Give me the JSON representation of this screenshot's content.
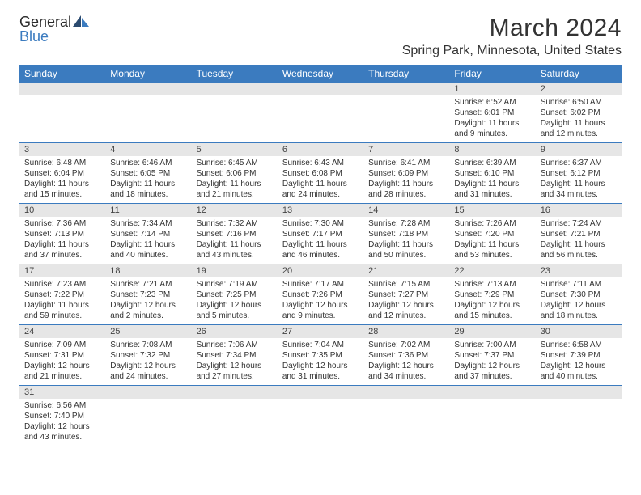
{
  "logo": {
    "text1": "General",
    "text2": "Blue"
  },
  "title": "March 2024",
  "location": "Spring Park, Minnesota, United States",
  "colors": {
    "header_bg": "#3b7bbf",
    "header_fg": "#ffffff",
    "daynum_bg": "#e6e6e6",
    "row_border": "#3b7bbf",
    "text": "#333333"
  },
  "day_headers": [
    "Sunday",
    "Monday",
    "Tuesday",
    "Wednesday",
    "Thursday",
    "Friday",
    "Saturday"
  ],
  "weeks": [
    [
      {
        "n": "",
        "sr": "",
        "ss": "",
        "dl": ""
      },
      {
        "n": "",
        "sr": "",
        "ss": "",
        "dl": ""
      },
      {
        "n": "",
        "sr": "",
        "ss": "",
        "dl": ""
      },
      {
        "n": "",
        "sr": "",
        "ss": "",
        "dl": ""
      },
      {
        "n": "",
        "sr": "",
        "ss": "",
        "dl": ""
      },
      {
        "n": "1",
        "sr": "Sunrise: 6:52 AM",
        "ss": "Sunset: 6:01 PM",
        "dl": "Daylight: 11 hours and 9 minutes."
      },
      {
        "n": "2",
        "sr": "Sunrise: 6:50 AM",
        "ss": "Sunset: 6:02 PM",
        "dl": "Daylight: 11 hours and 12 minutes."
      }
    ],
    [
      {
        "n": "3",
        "sr": "Sunrise: 6:48 AM",
        "ss": "Sunset: 6:04 PM",
        "dl": "Daylight: 11 hours and 15 minutes."
      },
      {
        "n": "4",
        "sr": "Sunrise: 6:46 AM",
        "ss": "Sunset: 6:05 PM",
        "dl": "Daylight: 11 hours and 18 minutes."
      },
      {
        "n": "5",
        "sr": "Sunrise: 6:45 AM",
        "ss": "Sunset: 6:06 PM",
        "dl": "Daylight: 11 hours and 21 minutes."
      },
      {
        "n": "6",
        "sr": "Sunrise: 6:43 AM",
        "ss": "Sunset: 6:08 PM",
        "dl": "Daylight: 11 hours and 24 minutes."
      },
      {
        "n": "7",
        "sr": "Sunrise: 6:41 AM",
        "ss": "Sunset: 6:09 PM",
        "dl": "Daylight: 11 hours and 28 minutes."
      },
      {
        "n": "8",
        "sr": "Sunrise: 6:39 AM",
        "ss": "Sunset: 6:10 PM",
        "dl": "Daylight: 11 hours and 31 minutes."
      },
      {
        "n": "9",
        "sr": "Sunrise: 6:37 AM",
        "ss": "Sunset: 6:12 PM",
        "dl": "Daylight: 11 hours and 34 minutes."
      }
    ],
    [
      {
        "n": "10",
        "sr": "Sunrise: 7:36 AM",
        "ss": "Sunset: 7:13 PM",
        "dl": "Daylight: 11 hours and 37 minutes."
      },
      {
        "n": "11",
        "sr": "Sunrise: 7:34 AM",
        "ss": "Sunset: 7:14 PM",
        "dl": "Daylight: 11 hours and 40 minutes."
      },
      {
        "n": "12",
        "sr": "Sunrise: 7:32 AM",
        "ss": "Sunset: 7:16 PM",
        "dl": "Daylight: 11 hours and 43 minutes."
      },
      {
        "n": "13",
        "sr": "Sunrise: 7:30 AM",
        "ss": "Sunset: 7:17 PM",
        "dl": "Daylight: 11 hours and 46 minutes."
      },
      {
        "n": "14",
        "sr": "Sunrise: 7:28 AM",
        "ss": "Sunset: 7:18 PM",
        "dl": "Daylight: 11 hours and 50 minutes."
      },
      {
        "n": "15",
        "sr": "Sunrise: 7:26 AM",
        "ss": "Sunset: 7:20 PM",
        "dl": "Daylight: 11 hours and 53 minutes."
      },
      {
        "n": "16",
        "sr": "Sunrise: 7:24 AM",
        "ss": "Sunset: 7:21 PM",
        "dl": "Daylight: 11 hours and 56 minutes."
      }
    ],
    [
      {
        "n": "17",
        "sr": "Sunrise: 7:23 AM",
        "ss": "Sunset: 7:22 PM",
        "dl": "Daylight: 11 hours and 59 minutes."
      },
      {
        "n": "18",
        "sr": "Sunrise: 7:21 AM",
        "ss": "Sunset: 7:23 PM",
        "dl": "Daylight: 12 hours and 2 minutes."
      },
      {
        "n": "19",
        "sr": "Sunrise: 7:19 AM",
        "ss": "Sunset: 7:25 PM",
        "dl": "Daylight: 12 hours and 5 minutes."
      },
      {
        "n": "20",
        "sr": "Sunrise: 7:17 AM",
        "ss": "Sunset: 7:26 PM",
        "dl": "Daylight: 12 hours and 9 minutes."
      },
      {
        "n": "21",
        "sr": "Sunrise: 7:15 AM",
        "ss": "Sunset: 7:27 PM",
        "dl": "Daylight: 12 hours and 12 minutes."
      },
      {
        "n": "22",
        "sr": "Sunrise: 7:13 AM",
        "ss": "Sunset: 7:29 PM",
        "dl": "Daylight: 12 hours and 15 minutes."
      },
      {
        "n": "23",
        "sr": "Sunrise: 7:11 AM",
        "ss": "Sunset: 7:30 PM",
        "dl": "Daylight: 12 hours and 18 minutes."
      }
    ],
    [
      {
        "n": "24",
        "sr": "Sunrise: 7:09 AM",
        "ss": "Sunset: 7:31 PM",
        "dl": "Daylight: 12 hours and 21 minutes."
      },
      {
        "n": "25",
        "sr": "Sunrise: 7:08 AM",
        "ss": "Sunset: 7:32 PM",
        "dl": "Daylight: 12 hours and 24 minutes."
      },
      {
        "n": "26",
        "sr": "Sunrise: 7:06 AM",
        "ss": "Sunset: 7:34 PM",
        "dl": "Daylight: 12 hours and 27 minutes."
      },
      {
        "n": "27",
        "sr": "Sunrise: 7:04 AM",
        "ss": "Sunset: 7:35 PM",
        "dl": "Daylight: 12 hours and 31 minutes."
      },
      {
        "n": "28",
        "sr": "Sunrise: 7:02 AM",
        "ss": "Sunset: 7:36 PM",
        "dl": "Daylight: 12 hours and 34 minutes."
      },
      {
        "n": "29",
        "sr": "Sunrise: 7:00 AM",
        "ss": "Sunset: 7:37 PM",
        "dl": "Daylight: 12 hours and 37 minutes."
      },
      {
        "n": "30",
        "sr": "Sunrise: 6:58 AM",
        "ss": "Sunset: 7:39 PM",
        "dl": "Daylight: 12 hours and 40 minutes."
      }
    ],
    [
      {
        "n": "31",
        "sr": "Sunrise: 6:56 AM",
        "ss": "Sunset: 7:40 PM",
        "dl": "Daylight: 12 hours and 43 minutes."
      },
      {
        "n": "",
        "sr": "",
        "ss": "",
        "dl": ""
      },
      {
        "n": "",
        "sr": "",
        "ss": "",
        "dl": ""
      },
      {
        "n": "",
        "sr": "",
        "ss": "",
        "dl": ""
      },
      {
        "n": "",
        "sr": "",
        "ss": "",
        "dl": ""
      },
      {
        "n": "",
        "sr": "",
        "ss": "",
        "dl": ""
      },
      {
        "n": "",
        "sr": "",
        "ss": "",
        "dl": ""
      }
    ]
  ]
}
